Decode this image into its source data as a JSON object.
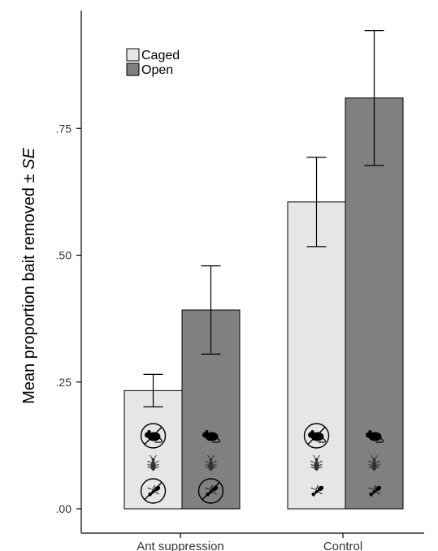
{
  "chart_data": {
    "type": "bar",
    "title": "",
    "xlabel": "",
    "ylabel": "Mean proportion bait removed ± ",
    "ylabel_italic": "SE",
    "categories": [
      "Ant suppression",
      "Control"
    ],
    "series": [
      {
        "name": "Caged",
        "color": "#e6e6e6",
        "values": [
          0.233,
          0.605
        ],
        "se": [
          0.032,
          0.088
        ]
      },
      {
        "name": "Open",
        "color": "#808080",
        "values": [
          0.392,
          0.81
        ],
        "se": [
          0.087,
          0.133
        ]
      }
    ],
    "ylim": [
      0,
      1.0
    ],
    "yticks": [
      0,
      0.25,
      0.5,
      0.75
    ],
    "ytick_labels": [
      ".00",
      ".25",
      ".50",
      ".75"
    ],
    "grid": false,
    "legend_position": "top-left",
    "icons": {
      "Ant suppression": {
        "Caged": [
          "rodent-excluded",
          "beetle",
          "ant-excluded"
        ],
        "Open": [
          "rodent",
          "beetle",
          "ant-excluded"
        ]
      },
      "Control": {
        "Caged": [
          "rodent-excluded",
          "beetle",
          "ant"
        ],
        "Open": [
          "rodent",
          "beetle",
          "ant"
        ]
      }
    }
  }
}
